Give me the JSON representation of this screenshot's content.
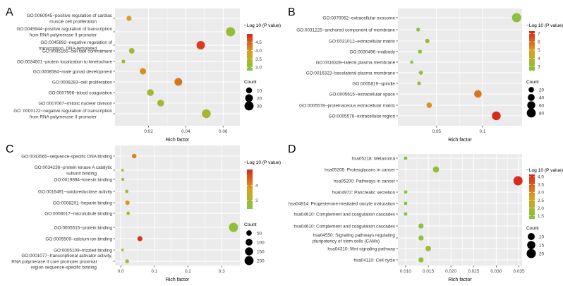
{
  "legend_titles": {
    "color": "−Log 10 (P value)",
    "size": "Count"
  },
  "xlabel": "Rich factor",
  "chart_data": [
    {
      "panel": "A",
      "type": "scatter",
      "xlabel": "Rich factor",
      "xticks": [
        0.02,
        0.04,
        0.06
      ],
      "xtick_labels": [
        "0.02",
        "0.04",
        "0.06"
      ],
      "xlim": [
        0.002,
        0.069
      ],
      "categories": [
        [
          "GO:0060045~positive regulation of cardiac",
          "muscle cell proliferation"
        ],
        [
          "GO:0045944~positive regulation of transcription",
          "from RNA polymerase II promoter"
        ],
        [
          "GO:0045892~negative regulation of",
          "transcription, DNA-templated"
        ],
        [
          "GO:0045165~cell fate commitment"
        ],
        [
          "GO:0034501~protein localization to kinetochore"
        ],
        [
          "GO:0008584~male gonad development"
        ],
        [
          "GO:0008283~cell proliferation"
        ],
        [
          "GO:0007596~blood coagulation"
        ],
        [
          "GO:0007067~mitotic nuclear division"
        ],
        [
          "GO: 0000122~negative regulation of transcription",
          "from RNA polymerase II promoter"
        ]
      ],
      "points": [
        {
          "x": 0.0095,
          "p": 3.9,
          "count": 6
        },
        {
          "x": 0.064,
          "p": 3.1,
          "count": 31
        },
        {
          "x": 0.048,
          "p": 4.8,
          "count": 25
        },
        {
          "x": 0.011,
          "p": 3.2,
          "count": 8
        },
        {
          "x": 0.0065,
          "p": 3.1,
          "count": 2
        },
        {
          "x": 0.017,
          "p": 4.1,
          "count": 12
        },
        {
          "x": 0.036,
          "p": 4.3,
          "count": 20
        },
        {
          "x": 0.021,
          "p": 3.2,
          "count": 14
        },
        {
          "x": 0.0265,
          "p": 3.3,
          "count": 14
        },
        {
          "x": 0.051,
          "p": 3.3,
          "count": 28
        }
      ],
      "color_legend": {
        "min": 2.8,
        "max": 5.0,
        "ticks": [
          3.0,
          3.5,
          4.0,
          4.5
        ],
        "tick_labels": [
          "3.0",
          "3.5",
          "4.0",
          "4.5"
        ]
      },
      "size_legend": {
        "values": [
          10,
          20,
          30
        ],
        "labels": [
          "10",
          "20",
          "30"
        ]
      }
    },
    {
      "panel": "B",
      "type": "scatter",
      "xlabel": "Rich factor",
      "xticks": [
        0.05,
        0.1
      ],
      "xtick_labels": [
        "0.05",
        "0.1"
      ],
      "xlim": [
        0.008,
        0.143
      ],
      "categories": [
        [
          "GO:0070062~extracellular exosome"
        ],
        [
          "GO:0031225~anchored component of membrane"
        ],
        [
          "GO:0031012~extracellular matrix"
        ],
        [
          "GO:0030496~midbody"
        ],
        [
          "GO:0016328~lateral plasma membrane"
        ],
        [
          "GO:0016323~basolateral plasma membrane"
        ],
        [
          "GO:0005819~spindle"
        ],
        [
          "GO:0005615~extracellular space"
        ],
        [
          "GO:0005578~proteinaceous extracellular matrix"
        ],
        [
          "GO:0005576~extracellular region"
        ]
      ],
      "points": [
        {
          "x": 0.137,
          "p": 2.8,
          "count": 85
        },
        {
          "x": 0.03,
          "p": 3.0,
          "count": 6
        },
        {
          "x": 0.04,
          "p": 3.2,
          "count": 11
        },
        {
          "x": 0.032,
          "p": 3.0,
          "count": 7
        },
        {
          "x": 0.023,
          "p": 2.8,
          "count": 3
        },
        {
          "x": 0.033,
          "p": 3.0,
          "count": 8
        },
        {
          "x": 0.031,
          "p": 3.1,
          "count": 6
        },
        {
          "x": 0.095,
          "p": 5.8,
          "count": 50
        },
        {
          "x": 0.042,
          "p": 5.2,
          "count": 20
        },
        {
          "x": 0.115,
          "p": 7.2,
          "count": 75
        }
      ],
      "color_legend": {
        "min": 2.5,
        "max": 7.3,
        "ticks": [
          3,
          4,
          5,
          6,
          7
        ],
        "tick_labels": [
          "3",
          "4",
          "5",
          "6",
          "7"
        ]
      },
      "size_legend": {
        "values": [
          20,
          40,
          60,
          80
        ],
        "labels": [
          "20",
          "40",
          "60",
          "80"
        ]
      }
    },
    {
      "panel": "C",
      "type": "scatter",
      "xlabel": "Rich factor",
      "xticks": [
        0.0,
        0.1,
        0.2,
        0.3
      ],
      "xtick_labels": [
        "0.0",
        "0.1",
        "0.2",
        "0.3"
      ],
      "xlim": [
        -0.017,
        0.354
      ],
      "categories": [
        [
          "GO:0043565~sequence-specific DNA binding"
        ],
        [
          "GO:0034236~protein kinase A catalytic",
          "subunit binding"
        ],
        [
          "GO:0019894~kinesin binding"
        ],
        [
          "GO:0016491~oxidoreductase activity"
        ],
        [
          "GO:0008201~heparin binding"
        ],
        [
          "GO:0008017~microtubule binding"
        ],
        [
          "GO:0005515~protein binding"
        ],
        [
          "GO:0005509~calcium ion binding"
        ],
        [
          "GO:0005109~frizzled binding"
        ],
        [
          "GO:0001077~transcriptional activator activity,",
          "RNA polymerase II core promoter proximal",
          "region sequence-specific binding"
        ]
      ],
      "points": [
        {
          "x": 0.04,
          "p": 4.1,
          "count": 30
        },
        {
          "x": 0.005,
          "p": 2.6,
          "count": 3
        },
        {
          "x": 0.006,
          "p": 2.6,
          "count": 4
        },
        {
          "x": 0.018,
          "p": 2.9,
          "count": 10
        },
        {
          "x": 0.02,
          "p": 3.9,
          "count": 25
        },
        {
          "x": 0.022,
          "p": 3.1,
          "count": 10
        },
        {
          "x": 0.335,
          "p": 2.6,
          "count": 210
        },
        {
          "x": 0.057,
          "p": 5.0,
          "count": 40
        },
        {
          "x": 0.005,
          "p": 2.6,
          "count": 3
        },
        {
          "x": 0.019,
          "p": 2.9,
          "count": 15
        }
      ],
      "color_legend": {
        "min": 2.4,
        "max": 5.1,
        "ticks": [
          3,
          4
        ],
        "tick_labels": [
          "3",
          "4"
        ]
      },
      "size_legend": {
        "values": [
          50,
          100,
          150,
          200
        ],
        "labels": [
          "50",
          "100",
          "150",
          "200"
        ]
      }
    },
    {
      "panel": "D",
      "type": "scatter",
      "xlabel": "Rich factor",
      "xticks": [
        0.01,
        0.015,
        0.02,
        0.025,
        0.03,
        0.035
      ],
      "xtick_labels": [
        "0.010",
        "0.015",
        "0.020",
        "0.025",
        "0.030",
        "0.035"
      ],
      "xlim": [
        0.0083,
        0.0357
      ],
      "categories": [
        [
          "hsa05218: Melanoma"
        ],
        [
          "hsa05205: Proteoglycans in cancer"
        ],
        [
          "hsa05200: Pathways in cancer"
        ],
        [
          "hsa04972: Pancreatic secretion"
        ],
        [
          "hsa04914: Progesterone-mediated oocyte maturation"
        ],
        [
          "hsa04610: Complement and coagulation cascades"
        ],
        [
          "hsa04610: Complement and coagulation cascades"
        ],
        [
          "hsa04550: Signaling pathways regulating",
          "pluripotency of stem cells (CAMs)"
        ],
        [
          "hsa04310: Wnt signaling pathway"
        ],
        [
          "hsa04110: Cell cycle"
        ]
      ],
      "points": [
        {
          "x": 0.01,
          "p": 1.4,
          "count": 1
        },
        {
          "x": 0.0167,
          "p": 1.6,
          "count": 7
        },
        {
          "x": 0.0348,
          "p": 4.1,
          "count": 20
        },
        {
          "x": 0.01,
          "p": 1.4,
          "count": 1
        },
        {
          "x": 0.01,
          "p": 1.4,
          "count": 1
        },
        {
          "x": 0.01,
          "p": 1.4,
          "count": 1
        },
        {
          "x": 0.0134,
          "p": 1.5,
          "count": 4
        },
        {
          "x": 0.0134,
          "p": 1.5,
          "count": 4
        },
        {
          "x": 0.015,
          "p": 1.8,
          "count": 5
        },
        {
          "x": 0.0134,
          "p": 1.5,
          "count": 4
        }
      ],
      "color_legend": {
        "min": 1.3,
        "max": 4.15,
        "ticks": [
          1.5,
          2.0,
          2.5,
          3.0,
          3.5,
          4.0
        ],
        "tick_labels": [
          "1.5",
          "2.0",
          "2.5",
          "3.0",
          "3.5",
          "4.0"
        ]
      },
      "size_legend": {
        "values": [
          10,
          15,
          20
        ],
        "labels": [
          "10",
          "15",
          "20"
        ]
      }
    }
  ]
}
